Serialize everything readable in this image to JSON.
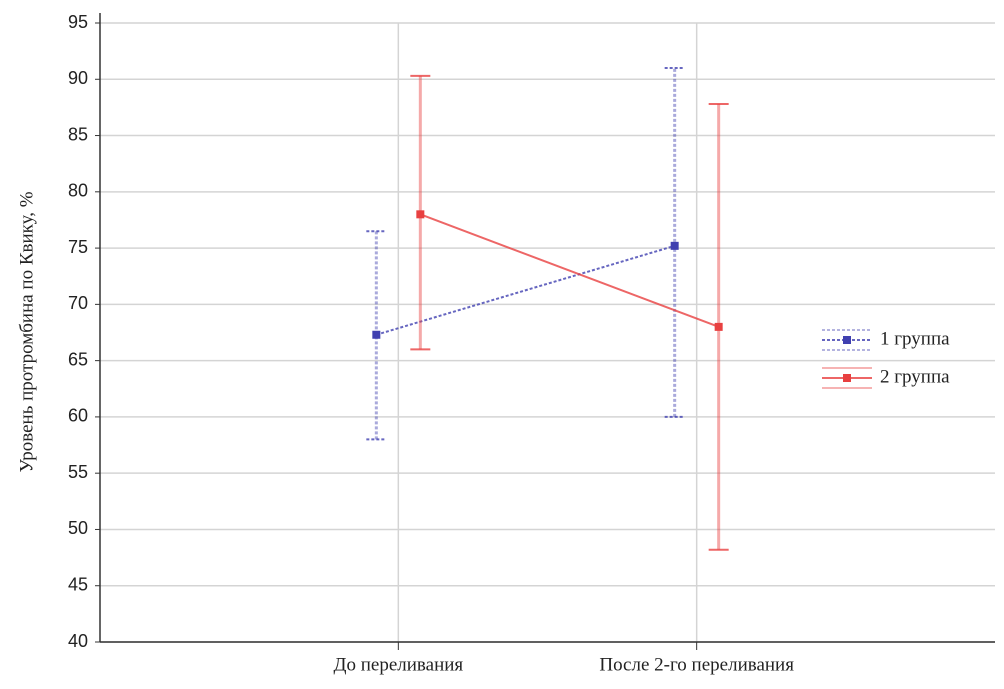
{
  "chart_data": {
    "type": "line",
    "y_label": "Уровень протромбина по Квику, %",
    "categories": [
      "До переливания",
      "После 2-го переливания"
    ],
    "series": [
      {
        "name": "1 группа",
        "color": "#4040b0",
        "dash": true,
        "values": [
          67.3,
          75.2
        ],
        "lower": [
          58,
          60
        ],
        "upper": [
          76.5,
          91
        ]
      },
      {
        "name": "2 группа",
        "color": "#e84040",
        "dash": false,
        "values": [
          78,
          68
        ],
        "lower": [
          66,
          48.2
        ],
        "upper": [
          90.3,
          87.8
        ]
      }
    ],
    "ylim": [
      40,
      95
    ],
    "yticks": [
      40,
      45,
      50,
      55,
      60,
      65,
      70,
      75,
      80,
      85,
      90,
      95
    ],
    "grid": true,
    "legend": "right"
  }
}
